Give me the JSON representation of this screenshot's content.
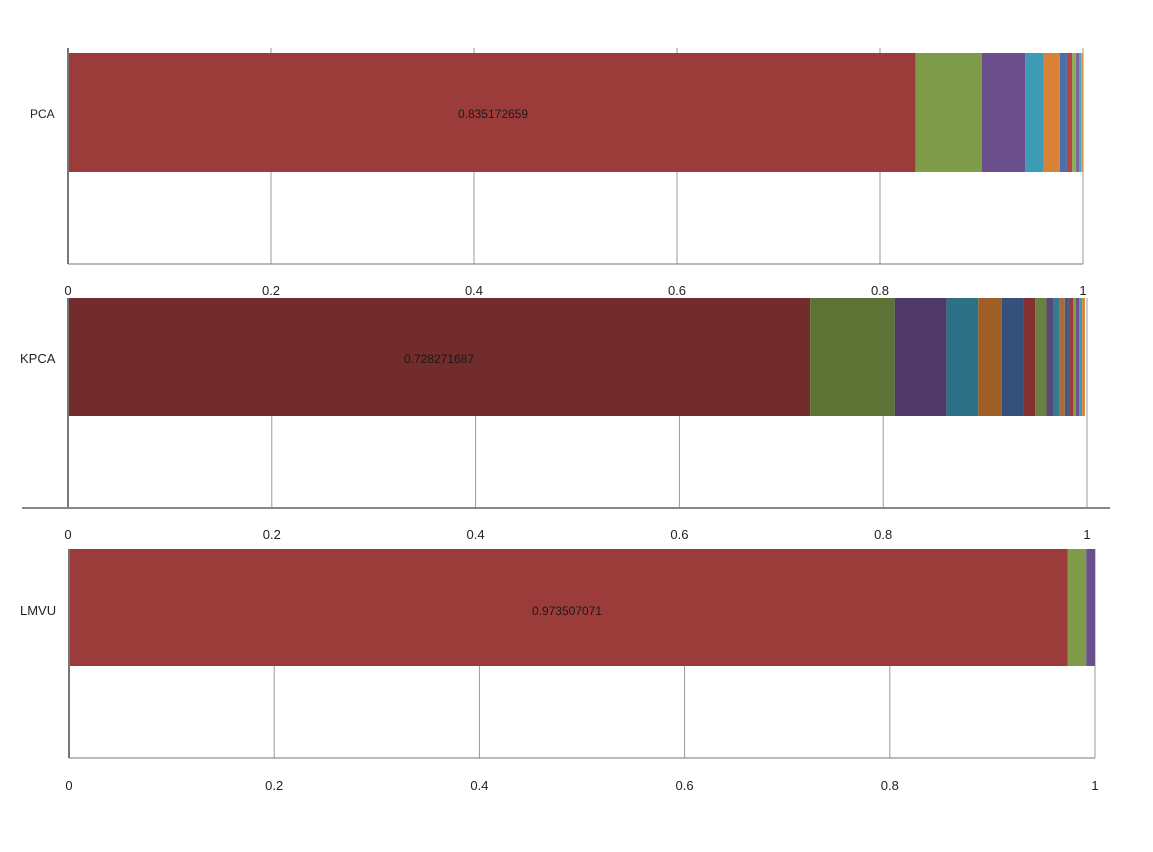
{
  "chart_data": [
    {
      "type": "bar",
      "orientation": "horizontal",
      "stacked": true,
      "categories": [
        "PCA"
      ],
      "segments": [
        0.835172659,
        0.065,
        0.043,
        0.018,
        0.016,
        0.007,
        0.005,
        0.004,
        0.003,
        0.002,
        0.0018
      ],
      "data_label": "0.835172659",
      "xlim": [
        0,
        1
      ],
      "xticks": [
        "0",
        "0.2",
        "0.4",
        "0.6",
        "0.8",
        "1"
      ],
      "grid": true,
      "legend": "none"
    },
    {
      "type": "bar",
      "orientation": "horizontal",
      "stacked": true,
      "categories": [
        "KPCA"
      ],
      "segments": [
        0.728271687,
        0.083,
        0.051,
        0.031,
        0.023,
        0.021,
        0.012,
        0.011,
        0.007,
        0.006,
        0.005,
        0.004,
        0.004,
        0.003,
        0.003,
        0.003,
        0.0027
      ],
      "data_label": "0.728271687",
      "xlim": [
        0,
        1
      ],
      "xticks": [
        "0",
        "0.2",
        "0.4",
        "0.6",
        "0.8",
        "1"
      ],
      "grid": true,
      "legend": "none"
    },
    {
      "type": "bar",
      "orientation": "horizontal",
      "stacked": true,
      "categories": [
        "LMVU"
      ],
      "segments": [
        0.973507071,
        0.018,
        0.0085
      ],
      "data_label": "0.973507071",
      "xlim": [
        0,
        1
      ],
      "xticks": [
        "0",
        "0.2",
        "0.4",
        "0.6",
        "0.8",
        "1"
      ],
      "grid": true,
      "legend": "none"
    }
  ],
  "colors": {
    "pca": [
      "#9b3c3b",
      "#7f9c4a",
      "#6b4f8c",
      "#3c9bb5",
      "#d98136",
      "#4a6fa8",
      "#b54643",
      "#8fae5a",
      "#7a63a0",
      "#47a9c0",
      "#e0914d"
    ],
    "kpca": [
      "#712c2b",
      "#5d7235",
      "#4f3a67",
      "#2c7185",
      "#9e5e28",
      "#35507a",
      "#843231",
      "#6a8141",
      "#594976",
      "#347c8d",
      "#a86a37",
      "#3e5c8a",
      "#9b3c3b",
      "#7f9c4a",
      "#6b4f8c",
      "#3c9bb5",
      "#d98136"
    ],
    "lmvu": [
      "#9b3c3b",
      "#7f9c4a",
      "#6b4f8c"
    ],
    "grid": "#9a9a9a",
    "axis": "#777777"
  }
}
